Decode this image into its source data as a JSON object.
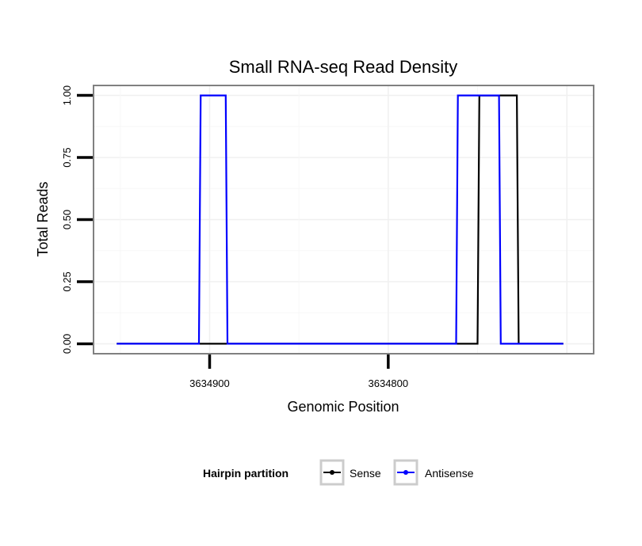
{
  "chart_data": {
    "type": "line",
    "title": "Small RNA-seq Read Density",
    "xlabel": "Genomic Position",
    "ylabel": "Total Reads",
    "x_reversed": true,
    "xlim": [
      3634965,
      3634685
    ],
    "ylim": [
      -0.04,
      1.04
    ],
    "x_ticks": [
      3634900,
      3634800
    ],
    "x_tick_labels": [
      "3634900",
      "3634800"
    ],
    "y_ticks": [
      0,
      0.25,
      0.5,
      0.75,
      1
    ],
    "y_tick_labels": [
      "0.00",
      "0.25",
      "0.50",
      "0.75",
      "1.00"
    ],
    "grid": true,
    "legend": {
      "title": "Hairpin partition",
      "position": "bottom",
      "entries": [
        {
          "label": "Sense",
          "color": "#000000"
        },
        {
          "label": "Antisense",
          "color": "#0000ff"
        }
      ]
    },
    "series": [
      {
        "name": "Sense",
        "color": "#000000",
        "x": [
          3634952,
          3634750,
          3634749,
          3634728,
          3634727,
          3634702
        ],
        "y": [
          0,
          0,
          1,
          1,
          0,
          0
        ]
      },
      {
        "name": "Antisense",
        "color": "#0000ff",
        "x": [
          3634952,
          3634906,
          3634905,
          3634891,
          3634890,
          3634762,
          3634761,
          3634738,
          3634737,
          3634702
        ],
        "y": [
          0,
          0,
          1,
          1,
          0,
          0,
          1,
          1,
          0,
          0
        ]
      }
    ]
  }
}
